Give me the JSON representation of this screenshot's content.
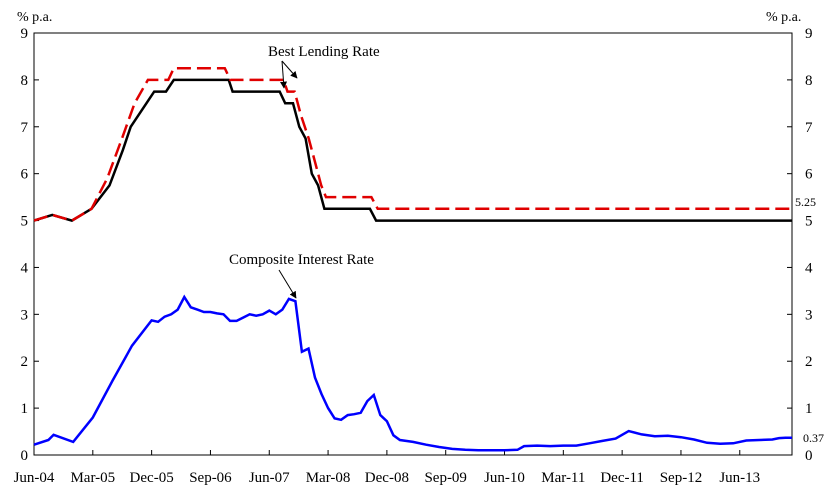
{
  "chart_data": {
    "type": "line",
    "title": "",
    "left_unit": "% p.a.",
    "right_unit": "% p.a.",
    "ylim": [
      0,
      9
    ],
    "y_ticks": [
      "0",
      "1",
      "2",
      "3",
      "4",
      "5",
      "6",
      "7",
      "8",
      "9"
    ],
    "xlim": [
      2004.417,
      2014.083
    ],
    "x_ticks": [
      {
        "label": "Jun-04",
        "x": 2004.417
      },
      {
        "label": "Mar-05",
        "x": 2005.167
      },
      {
        "label": "Dec-05",
        "x": 2005.917
      },
      {
        "label": "Sep-06",
        "x": 2006.667
      },
      {
        "label": "Jun-07",
        "x": 2007.417
      },
      {
        "label": "Mar-08",
        "x": 2008.167
      },
      {
        "label": "Dec-08",
        "x": 2008.917
      },
      {
        "label": "Sep-09",
        "x": 2009.667
      },
      {
        "label": "Jun-10",
        "x": 2010.417
      },
      {
        "label": "Mar-11",
        "x": 2011.167
      },
      {
        "label": "Dec-11",
        "x": 2011.917
      },
      {
        "label": "Sep-12",
        "x": 2012.667
      },
      {
        "label": "Jun-13",
        "x": 2013.417
      }
    ],
    "grid": false,
    "series": [
      {
        "name": "Best Lending Rate",
        "color": "#000000",
        "style": "solid",
        "points": [
          [
            2004.417,
            5.0
          ],
          [
            2004.65,
            5.12
          ],
          [
            2004.9,
            5.0
          ],
          [
            2005.15,
            5.25
          ],
          [
            2005.38,
            5.75
          ],
          [
            2005.55,
            6.5
          ],
          [
            2005.65,
            7.0
          ],
          [
            2005.85,
            7.5
          ],
          [
            2005.95,
            7.75
          ],
          [
            2006.1,
            7.75
          ],
          [
            2006.2,
            8.0
          ],
          [
            2006.5,
            8.0
          ],
          [
            2006.75,
            8.0
          ],
          [
            2006.9,
            8.0
          ],
          [
            2006.95,
            7.75
          ],
          [
            2007.3,
            7.75
          ],
          [
            2007.55,
            7.75
          ],
          [
            2007.62,
            7.5
          ],
          [
            2007.72,
            7.5
          ],
          [
            2007.8,
            7.0
          ],
          [
            2007.88,
            6.75
          ],
          [
            2007.96,
            6.0
          ],
          [
            2008.04,
            5.75
          ],
          [
            2008.12,
            5.25
          ],
          [
            2008.3,
            5.25
          ],
          [
            2008.5,
            5.25
          ],
          [
            2008.7,
            5.25
          ],
          [
            2008.78,
            5.0
          ],
          [
            2009.2,
            5.0
          ],
          [
            2010.5,
            5.0
          ],
          [
            2012.5,
            5.0
          ],
          [
            2014.083,
            5.0
          ]
        ]
      },
      {
        "name": "Best Lending Rate",
        "color": "#e00000",
        "style": "dashed",
        "points": [
          [
            2004.417,
            5.0
          ],
          [
            2004.65,
            5.12
          ],
          [
            2004.9,
            5.0
          ],
          [
            2005.15,
            5.25
          ],
          [
            2005.35,
            5.9
          ],
          [
            2005.55,
            6.8
          ],
          [
            2005.7,
            7.5
          ],
          [
            2005.87,
            8.0
          ],
          [
            2006.0,
            8.0
          ],
          [
            2006.13,
            8.0
          ],
          [
            2006.2,
            8.25
          ],
          [
            2006.5,
            8.25
          ],
          [
            2006.85,
            8.25
          ],
          [
            2006.92,
            8.0
          ],
          [
            2007.3,
            8.0
          ],
          [
            2007.6,
            8.0
          ],
          [
            2007.65,
            7.75
          ],
          [
            2007.74,
            7.75
          ],
          [
            2007.82,
            7.25
          ],
          [
            2007.92,
            6.75
          ],
          [
            2008.0,
            6.25
          ],
          [
            2008.08,
            5.75
          ],
          [
            2008.14,
            5.5
          ],
          [
            2008.4,
            5.5
          ],
          [
            2008.72,
            5.5
          ],
          [
            2008.8,
            5.25
          ],
          [
            2009.2,
            5.25
          ],
          [
            2010.5,
            5.25
          ],
          [
            2012.5,
            5.25
          ],
          [
            2014.083,
            5.25
          ]
        ]
      },
      {
        "name": "Composite Interest Rate",
        "color": "#0000ff",
        "style": "solid",
        "points": [
          [
            2004.417,
            0.22
          ],
          [
            2004.6,
            0.32
          ],
          [
            2004.667,
            0.43
          ],
          [
            2004.917,
            0.28
          ],
          [
            2005.167,
            0.8
          ],
          [
            2005.417,
            1.58
          ],
          [
            2005.667,
            2.33
          ],
          [
            2005.917,
            2.87
          ],
          [
            2006.0,
            2.84
          ],
          [
            2006.083,
            2.95
          ],
          [
            2006.167,
            3.0
          ],
          [
            2006.25,
            3.1
          ],
          [
            2006.333,
            3.37
          ],
          [
            2006.417,
            3.15
          ],
          [
            2006.5,
            3.1
          ],
          [
            2006.583,
            3.05
          ],
          [
            2006.667,
            3.05
          ],
          [
            2006.75,
            3.02
          ],
          [
            2006.833,
            3.0
          ],
          [
            2006.917,
            2.86
          ],
          [
            2007.0,
            2.86
          ],
          [
            2007.083,
            2.93
          ],
          [
            2007.167,
            3.0
          ],
          [
            2007.25,
            2.97
          ],
          [
            2007.333,
            3.0
          ],
          [
            2007.417,
            3.08
          ],
          [
            2007.5,
            3.0
          ],
          [
            2007.583,
            3.1
          ],
          [
            2007.667,
            3.33
          ],
          [
            2007.75,
            3.28
          ],
          [
            2007.833,
            2.2
          ],
          [
            2007.917,
            2.27
          ],
          [
            2008.0,
            1.65
          ],
          [
            2008.083,
            1.3
          ],
          [
            2008.167,
            1.0
          ],
          [
            2008.25,
            0.78
          ],
          [
            2008.333,
            0.75
          ],
          [
            2008.417,
            0.85
          ],
          [
            2008.5,
            0.87
          ],
          [
            2008.583,
            0.9
          ],
          [
            2008.667,
            1.15
          ],
          [
            2008.75,
            1.28
          ],
          [
            2008.833,
            0.85
          ],
          [
            2008.917,
            0.72
          ],
          [
            2009.0,
            0.42
          ],
          [
            2009.083,
            0.32
          ],
          [
            2009.25,
            0.28
          ],
          [
            2009.417,
            0.22
          ],
          [
            2009.583,
            0.17
          ],
          [
            2009.75,
            0.13
          ],
          [
            2009.917,
            0.11
          ],
          [
            2010.083,
            0.1
          ],
          [
            2010.25,
            0.1
          ],
          [
            2010.417,
            0.1
          ],
          [
            2010.583,
            0.11
          ],
          [
            2010.667,
            0.19
          ],
          [
            2010.833,
            0.2
          ],
          [
            2011.0,
            0.19
          ],
          [
            2011.167,
            0.2
          ],
          [
            2011.333,
            0.2
          ],
          [
            2011.5,
            0.25
          ],
          [
            2011.667,
            0.3
          ],
          [
            2011.833,
            0.35
          ],
          [
            2012.0,
            0.51
          ],
          [
            2012.167,
            0.44
          ],
          [
            2012.333,
            0.4
          ],
          [
            2012.5,
            0.41
          ],
          [
            2012.667,
            0.38
          ],
          [
            2012.833,
            0.33
          ],
          [
            2013.0,
            0.26
          ],
          [
            2013.167,
            0.24
          ],
          [
            2013.333,
            0.25
          ],
          [
            2013.5,
            0.31
          ],
          [
            2013.667,
            0.32
          ],
          [
            2013.833,
            0.33
          ],
          [
            2013.917,
            0.36
          ],
          [
            2014.0,
            0.37
          ],
          [
            2014.083,
            0.37
          ]
        ]
      }
    ],
    "annotations": [
      {
        "text": "Best Lending Rate",
        "points_to": "both BLR lines"
      },
      {
        "text": "Composite Interest Rate",
        "points_to": "peak of composite rate"
      }
    ],
    "end_labels": [
      "5.25",
      "0.37"
    ]
  }
}
